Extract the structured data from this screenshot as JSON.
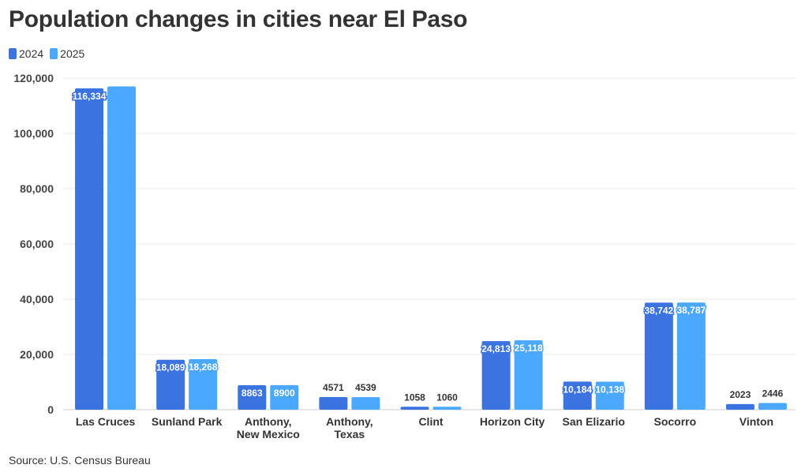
{
  "title": "Population changes in cities near El Paso",
  "source": "Source: U.S. Census Bureau",
  "colors": {
    "series_2024": "#3b73e0",
    "series_2025": "#4aa8ff"
  },
  "chart_data": {
    "type": "bar",
    "title": "Population changes in cities near El Paso",
    "categories": [
      [
        "Las Cruces"
      ],
      [
        "Sunland Park"
      ],
      [
        "Anthony,",
        "New Mexico"
      ],
      [
        "Anthony,",
        "Texas"
      ],
      [
        "Clint"
      ],
      [
        "Horizon City"
      ],
      [
        "San Elizario"
      ],
      [
        "Socorro"
      ],
      [
        "Vinton"
      ]
    ],
    "series": [
      {
        "name": "2024",
        "values": [
          116334,
          18089,
          8863,
          4571,
          1058,
          24813,
          10184,
          38742,
          2023
        ],
        "labels": [
          "116,334",
          "18,089",
          "8863",
          "4571",
          "1058",
          "24,813",
          "10,184",
          "38,742",
          "2023"
        ]
      },
      {
        "name": "2025",
        "values": [
          117000,
          18268,
          8900,
          4539,
          1060,
          25118,
          10138,
          38787,
          2446
        ],
        "labels": [
          "",
          "18,268",
          "8900",
          "4539",
          "1060",
          "25,118",
          "10,138",
          "38,787",
          "2446"
        ]
      }
    ],
    "ylim": [
      0,
      120000
    ],
    "yticks": [
      0,
      20000,
      40000,
      60000,
      80000,
      100000,
      120000
    ],
    "ytick_labels": [
      "0",
      "20,000",
      "40,000",
      "60,000",
      "80,000",
      "100,000",
      "120,000"
    ],
    "grid": true,
    "legend": "top-left"
  }
}
